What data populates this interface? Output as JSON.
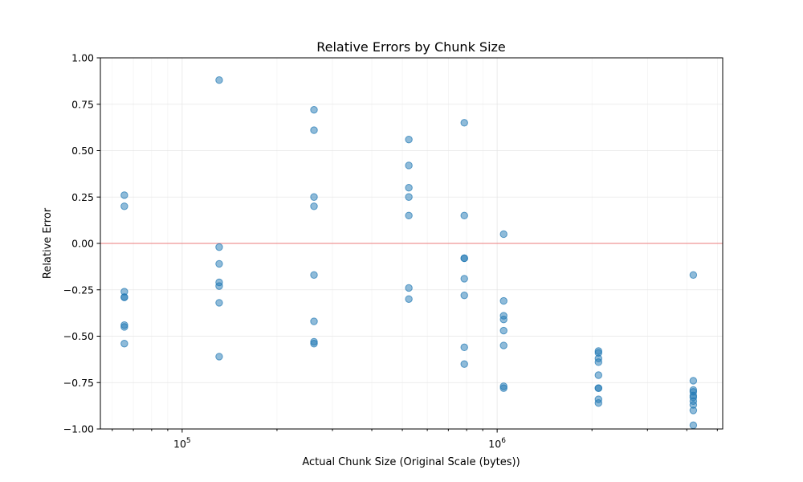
{
  "chart_data": {
    "type": "scatter",
    "title": "Relative Errors by Chunk Size",
    "xlabel": "Actual Chunk Size (Original Scale (bytes))",
    "ylabel": "Relative Error",
    "xscale": "log",
    "xlim": [
      55000,
      5200000
    ],
    "ylim": [
      -1.0,
      1.0
    ],
    "grid": true,
    "y_ticks": [
      "1.00",
      "0.75",
      "0.50",
      "0.25",
      "0.00",
      "−0.25",
      "−0.50",
      "−0.75",
      "−1.00"
    ],
    "x_ticks": [
      {
        "base": "10",
        "exp": "5"
      },
      {
        "base": "10",
        "exp": "6"
      }
    ],
    "reference_line": {
      "y": 0,
      "color": "#ef4d4d"
    },
    "point_color": "#1f77b4",
    "points": [
      {
        "x": 65536,
        "y": 0.26
      },
      {
        "x": 65536,
        "y": 0.2
      },
      {
        "x": 65536,
        "y": -0.26
      },
      {
        "x": 65536,
        "y": -0.29
      },
      {
        "x": 65536,
        "y": -0.29
      },
      {
        "x": 65536,
        "y": -0.44
      },
      {
        "x": 65536,
        "y": -0.45
      },
      {
        "x": 65536,
        "y": -0.54
      },
      {
        "x": 131072,
        "y": 0.88
      },
      {
        "x": 131072,
        "y": -0.02
      },
      {
        "x": 131072,
        "y": -0.11
      },
      {
        "x": 131072,
        "y": -0.21
      },
      {
        "x": 131072,
        "y": -0.23
      },
      {
        "x": 131072,
        "y": -0.32
      },
      {
        "x": 131072,
        "y": -0.61
      },
      {
        "x": 262144,
        "y": 0.72
      },
      {
        "x": 262144,
        "y": 0.61
      },
      {
        "x": 262144,
        "y": 0.25
      },
      {
        "x": 262144,
        "y": 0.2
      },
      {
        "x": 262144,
        "y": -0.17
      },
      {
        "x": 262144,
        "y": -0.42
      },
      {
        "x": 262144,
        "y": -0.53
      },
      {
        "x": 262144,
        "y": -0.54
      },
      {
        "x": 524288,
        "y": 0.56
      },
      {
        "x": 524288,
        "y": 0.42
      },
      {
        "x": 524288,
        "y": 0.3
      },
      {
        "x": 524288,
        "y": 0.25
      },
      {
        "x": 524288,
        "y": 0.15
      },
      {
        "x": 524288,
        "y": -0.24
      },
      {
        "x": 524288,
        "y": -0.3
      },
      {
        "x": 786432,
        "y": 0.65
      },
      {
        "x": 786432,
        "y": 0.15
      },
      {
        "x": 786432,
        "y": -0.08
      },
      {
        "x": 786432,
        "y": -0.08
      },
      {
        "x": 786432,
        "y": -0.19
      },
      {
        "x": 786432,
        "y": -0.28
      },
      {
        "x": 786432,
        "y": -0.56
      },
      {
        "x": 786432,
        "y": -0.65
      },
      {
        "x": 1048576,
        "y": 0.05
      },
      {
        "x": 1048576,
        "y": -0.31
      },
      {
        "x": 1048576,
        "y": -0.39
      },
      {
        "x": 1048576,
        "y": -0.41
      },
      {
        "x": 1048576,
        "y": -0.47
      },
      {
        "x": 1048576,
        "y": -0.55
      },
      {
        "x": 1048576,
        "y": -0.77
      },
      {
        "x": 1048576,
        "y": -0.78
      },
      {
        "x": 2097152,
        "y": -0.58
      },
      {
        "x": 2097152,
        "y": -0.59
      },
      {
        "x": 2097152,
        "y": -0.62
      },
      {
        "x": 2097152,
        "y": -0.64
      },
      {
        "x": 2097152,
        "y": -0.71
      },
      {
        "x": 2097152,
        "y": -0.78
      },
      {
        "x": 2097152,
        "y": -0.78
      },
      {
        "x": 2097152,
        "y": -0.84
      },
      {
        "x": 2097152,
        "y": -0.86
      },
      {
        "x": 4194304,
        "y": -0.17
      },
      {
        "x": 4194304,
        "y": -0.74
      },
      {
        "x": 4194304,
        "y": -0.79
      },
      {
        "x": 4194304,
        "y": -0.8
      },
      {
        "x": 4194304,
        "y": -0.82
      },
      {
        "x": 4194304,
        "y": -0.83
      },
      {
        "x": 4194304,
        "y": -0.85
      },
      {
        "x": 4194304,
        "y": -0.87
      },
      {
        "x": 4194304,
        "y": -0.9
      },
      {
        "x": 4194304,
        "y": -0.98
      }
    ]
  }
}
